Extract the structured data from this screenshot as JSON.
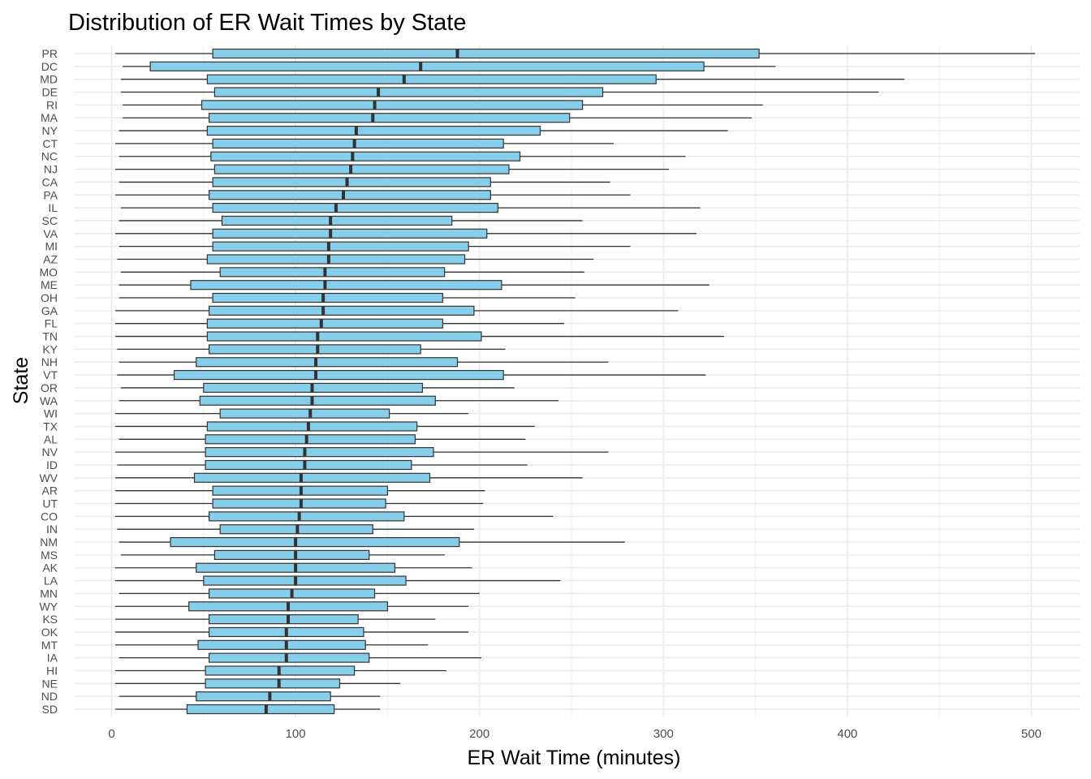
{
  "chart_data": {
    "type": "boxplot",
    "title": "Distribution of ER Wait Times by State",
    "xlabel": "ER Wait Time (minutes)",
    "ylabel": "State",
    "xlim": [
      -20,
      520
    ],
    "xticks": [
      0,
      100,
      200,
      300,
      400,
      500
    ],
    "grid": true,
    "legend": "none",
    "box_color": "#87CEEB",
    "outline_color": "#333333",
    "categories": [
      "PR",
      "DC",
      "MD",
      "DE",
      "RI",
      "MA",
      "NY",
      "CT",
      "NC",
      "NJ",
      "CA",
      "PA",
      "IL",
      "SC",
      "VA",
      "MI",
      "AZ",
      "MO",
      "ME",
      "OH",
      "GA",
      "FL",
      "TN",
      "KY",
      "NH",
      "VT",
      "OR",
      "WA",
      "WI",
      "TX",
      "AL",
      "NV",
      "ID",
      "WV",
      "AR",
      "UT",
      "CO",
      "IN",
      "NM",
      "MS",
      "AK",
      "LA",
      "MN",
      "WY",
      "KS",
      "OK",
      "MT",
      "IA",
      "HI",
      "NE",
      "ND",
      "SD"
    ],
    "series": [
      {
        "category": "PR",
        "whisker_low": 2,
        "q1": 55,
        "median": 188,
        "q3": 352,
        "whisker_high": 502
      },
      {
        "category": "DC",
        "whisker_low": 6,
        "q1": 21,
        "median": 168,
        "q3": 322,
        "whisker_high": 361
      },
      {
        "category": "MD",
        "whisker_low": 5,
        "q1": 52,
        "median": 159,
        "q3": 296,
        "whisker_high": 431
      },
      {
        "category": "DE",
        "whisker_low": 5,
        "q1": 56,
        "median": 145,
        "q3": 267,
        "whisker_high": 417
      },
      {
        "category": "RI",
        "whisker_low": 6,
        "q1": 49,
        "median": 143,
        "q3": 256,
        "whisker_high": 354
      },
      {
        "category": "MA",
        "whisker_low": 6,
        "q1": 53,
        "median": 142,
        "q3": 249,
        "whisker_high": 348
      },
      {
        "category": "NY",
        "whisker_low": 4,
        "q1": 52,
        "median": 133,
        "q3": 233,
        "whisker_high": 335
      },
      {
        "category": "CT",
        "whisker_low": 2,
        "q1": 55,
        "median": 132,
        "q3": 213,
        "whisker_high": 273
      },
      {
        "category": "NC",
        "whisker_low": 4,
        "q1": 54,
        "median": 131,
        "q3": 222,
        "whisker_high": 312
      },
      {
        "category": "NJ",
        "whisker_low": 2,
        "q1": 56,
        "median": 130,
        "q3": 216,
        "whisker_high": 303
      },
      {
        "category": "CA",
        "whisker_low": 4,
        "q1": 55,
        "median": 128,
        "q3": 206,
        "whisker_high": 271
      },
      {
        "category": "PA",
        "whisker_low": 2,
        "q1": 53,
        "median": 126,
        "q3": 206,
        "whisker_high": 282
      },
      {
        "category": "IL",
        "whisker_low": 5,
        "q1": 55,
        "median": 122,
        "q3": 210,
        "whisker_high": 320
      },
      {
        "category": "SC",
        "whisker_low": 4,
        "q1": 60,
        "median": 119,
        "q3": 185,
        "whisker_high": 256
      },
      {
        "category": "VA",
        "whisker_low": 2,
        "q1": 55,
        "median": 119,
        "q3": 204,
        "whisker_high": 318
      },
      {
        "category": "MI",
        "whisker_low": 4,
        "q1": 55,
        "median": 118,
        "q3": 194,
        "whisker_high": 282
      },
      {
        "category": "AZ",
        "whisker_low": 3,
        "q1": 52,
        "median": 118,
        "q3": 192,
        "whisker_high": 262
      },
      {
        "category": "MO",
        "whisker_low": 5,
        "q1": 59,
        "median": 116,
        "q3": 181,
        "whisker_high": 257
      },
      {
        "category": "ME",
        "whisker_low": 4,
        "q1": 43,
        "median": 116,
        "q3": 212,
        "whisker_high": 325
      },
      {
        "category": "OH",
        "whisker_low": 4,
        "q1": 55,
        "median": 115,
        "q3": 180,
        "whisker_high": 252
      },
      {
        "category": "GA",
        "whisker_low": 2,
        "q1": 53,
        "median": 115,
        "q3": 197,
        "whisker_high": 308
      },
      {
        "category": "FL",
        "whisker_low": 2,
        "q1": 52,
        "median": 114,
        "q3": 180,
        "whisker_high": 246
      },
      {
        "category": "TN",
        "whisker_low": 2,
        "q1": 52,
        "median": 112,
        "q3": 201,
        "whisker_high": 333
      },
      {
        "category": "KY",
        "whisker_low": 3,
        "q1": 53,
        "median": 112,
        "q3": 168,
        "whisker_high": 214
      },
      {
        "category": "NH",
        "whisker_low": 4,
        "q1": 46,
        "median": 111,
        "q3": 188,
        "whisker_high": 270
      },
      {
        "category": "VT",
        "whisker_low": 3,
        "q1": 34,
        "median": 111,
        "q3": 213,
        "whisker_high": 323
      },
      {
        "category": "OR",
        "whisker_low": 5,
        "q1": 50,
        "median": 109,
        "q3": 169,
        "whisker_high": 219
      },
      {
        "category": "WA",
        "whisker_low": 4,
        "q1": 48,
        "median": 109,
        "q3": 176,
        "whisker_high": 243
      },
      {
        "category": "WI",
        "whisker_low": 2,
        "q1": 59,
        "median": 108,
        "q3": 151,
        "whisker_high": 194
      },
      {
        "category": "TX",
        "whisker_low": 2,
        "q1": 52,
        "median": 107,
        "q3": 166,
        "whisker_high": 230
      },
      {
        "category": "AL",
        "whisker_low": 4,
        "q1": 51,
        "median": 106,
        "q3": 165,
        "whisker_high": 225
      },
      {
        "category": "NV",
        "whisker_low": 2,
        "q1": 51,
        "median": 105,
        "q3": 175,
        "whisker_high": 270
      },
      {
        "category": "ID",
        "whisker_low": 3,
        "q1": 51,
        "median": 105,
        "q3": 163,
        "whisker_high": 226
      },
      {
        "category": "WV",
        "whisker_low": 2,
        "q1": 45,
        "median": 103,
        "q3": 173,
        "whisker_high": 256
      },
      {
        "category": "AR",
        "whisker_low": 2,
        "q1": 55,
        "median": 103,
        "q3": 150,
        "whisker_high": 203
      },
      {
        "category": "UT",
        "whisker_low": 2,
        "q1": 55,
        "median": 103,
        "q3": 149,
        "whisker_high": 202
      },
      {
        "category": "CO",
        "whisker_low": 2,
        "q1": 53,
        "median": 102,
        "q3": 159,
        "whisker_high": 240
      },
      {
        "category": "IN",
        "whisker_low": 3,
        "q1": 59,
        "median": 101,
        "q3": 142,
        "whisker_high": 197
      },
      {
        "category": "NM",
        "whisker_low": 4,
        "q1": 32,
        "median": 100,
        "q3": 189,
        "whisker_high": 279
      },
      {
        "category": "MS",
        "whisker_low": 5,
        "q1": 56,
        "median": 100,
        "q3": 140,
        "whisker_high": 181
      },
      {
        "category": "AK",
        "whisker_low": 2,
        "q1": 46,
        "median": 100,
        "q3": 154,
        "whisker_high": 196
      },
      {
        "category": "LA",
        "whisker_low": 2,
        "q1": 50,
        "median": 100,
        "q3": 160,
        "whisker_high": 244
      },
      {
        "category": "MN",
        "whisker_low": 4,
        "q1": 53,
        "median": 98,
        "q3": 143,
        "whisker_high": 200
      },
      {
        "category": "WY",
        "whisker_low": 2,
        "q1": 42,
        "median": 96,
        "q3": 150,
        "whisker_high": 194
      },
      {
        "category": "KS",
        "whisker_low": 2,
        "q1": 53,
        "median": 96,
        "q3": 134,
        "whisker_high": 176
      },
      {
        "category": "OK",
        "whisker_low": 2,
        "q1": 53,
        "median": 95,
        "q3": 137,
        "whisker_high": 194
      },
      {
        "category": "MT",
        "whisker_low": 2,
        "q1": 47,
        "median": 95,
        "q3": 138,
        "whisker_high": 172
      },
      {
        "category": "IA",
        "whisker_low": 4,
        "q1": 53,
        "median": 95,
        "q3": 140,
        "whisker_high": 201
      },
      {
        "category": "HI",
        "whisker_low": 2,
        "q1": 51,
        "median": 91,
        "q3": 132,
        "whisker_high": 182
      },
      {
        "category": "NE",
        "whisker_low": 2,
        "q1": 51,
        "median": 91,
        "q3": 124,
        "whisker_high": 157
      },
      {
        "category": "ND",
        "whisker_low": 4,
        "q1": 46,
        "median": 86,
        "q3": 119,
        "whisker_high": 146
      },
      {
        "category": "SD",
        "whisker_low": 2,
        "q1": 41,
        "median": 84,
        "q3": 121,
        "whisker_high": 146
      }
    ]
  }
}
